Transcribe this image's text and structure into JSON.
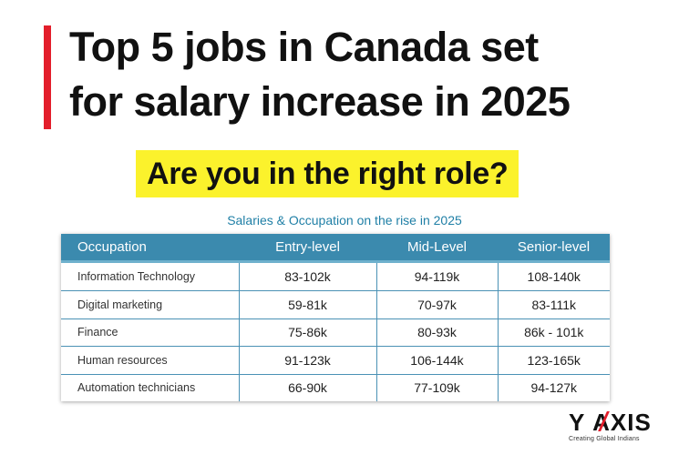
{
  "headline": {
    "line1": "Top 5 jobs in Canada set",
    "line2": "for salary increase in 2025"
  },
  "subheadline": "Are you in the right role?",
  "colors": {
    "accent_red": "#e31e2b",
    "highlight_yellow": "#fbf22c",
    "table_header": "#3b8aae",
    "table_title": "#1f7fa6"
  },
  "table": {
    "title": "Salaries & Occupation on the rise in 2025",
    "headers": [
      "Occupation",
      "Entry-level",
      "Mid-Level",
      "Senior-level"
    ],
    "rows": [
      [
        "Information Technology",
        "83-102k",
        "94-119k",
        "108-140k"
      ],
      [
        "Digital marketing",
        "59-81k",
        "70-97k",
        "83-111k"
      ],
      [
        "Finance",
        "75-86k",
        "80-93k",
        "86k - 101k"
      ],
      [
        "Human resources",
        "91-123k",
        "106-144k",
        "123-165k"
      ],
      [
        "Automation technicians",
        "66-90k",
        "77-109k",
        "94-127k"
      ]
    ]
  },
  "logo": {
    "y": "Y",
    "axis": "AXIS",
    "tagline": "Creating Global Indians",
    "icon": "y-axis-logo-icon"
  }
}
